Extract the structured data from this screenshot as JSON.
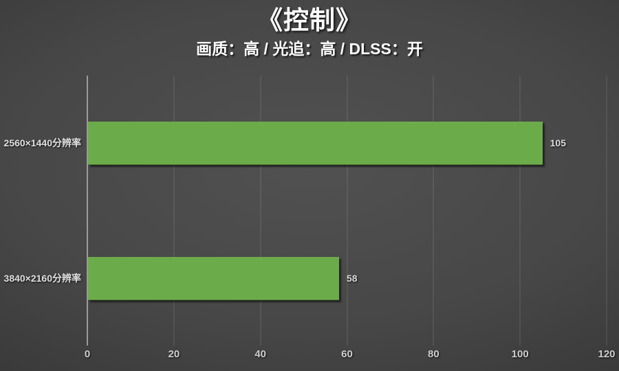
{
  "chart_data": {
    "type": "bar",
    "orientation": "horizontal",
    "title": "《控制》",
    "subtitle": "画质：高 / 光追：高 / DLSS：开",
    "categories": [
      "2560×1440分辨率",
      "3840×2160分辨率"
    ],
    "values": [
      105,
      58
    ],
    "value_labels": [
      "105",
      "58"
    ],
    "xlabel": "",
    "ylabel": "",
    "xlim": [
      0,
      120
    ],
    "x_ticks": [
      "0",
      "20",
      "40",
      "60",
      "80",
      "100",
      "120"
    ],
    "grid": true,
    "legend": false,
    "bar_color": "#6CAB4A",
    "axis_line_color": "#9b9b9b",
    "background_center_color": "#4f4f4f",
    "background_edge_color": "#1d1d1d",
    "title_color": "#ffffff",
    "label_color": "#d9d9d9"
  }
}
